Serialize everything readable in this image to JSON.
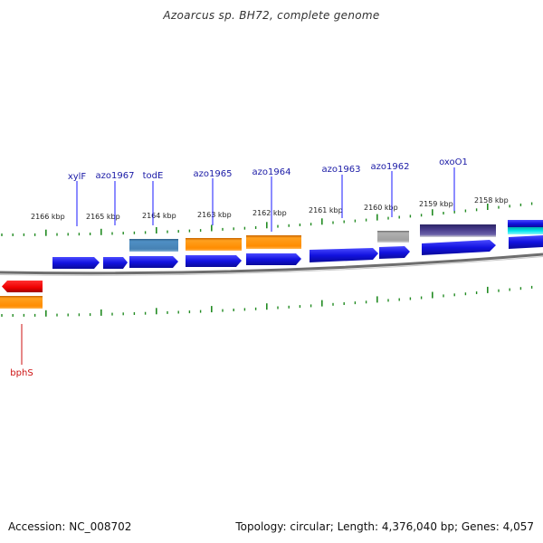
{
  "title": "Azoarcus sp. BH72, complete genome",
  "footer": {
    "accession": "Accession: NC_008702",
    "stats": "Topology: circular; Length: 4,376,040 bp; Genes: 4,057"
  },
  "scale_labels": [
    "2166 kbp",
    "2165 kbp",
    "2164 kbp",
    "2163 kbp",
    "2162 kbp",
    "2161 kbp",
    "2160 kbp",
    "2159 kbp",
    "2158 kbp"
  ],
  "gene_labels": [
    "xylF",
    "azo1967",
    "todE",
    "azo1965",
    "azo1964",
    "azo1963",
    "azo1962",
    "oxoO1"
  ],
  "lower_gene_label": "bphS",
  "colors": {
    "cds": "#1a1ae6",
    "orange": "#ff8c00",
    "steelblue": "#4682b4",
    "gray": "#a0a0a0",
    "purple": "#483d8b",
    "cyan": "#00e5ee",
    "red": "#ee0000",
    "tick": "#228b22",
    "backbone": "#808080"
  }
}
